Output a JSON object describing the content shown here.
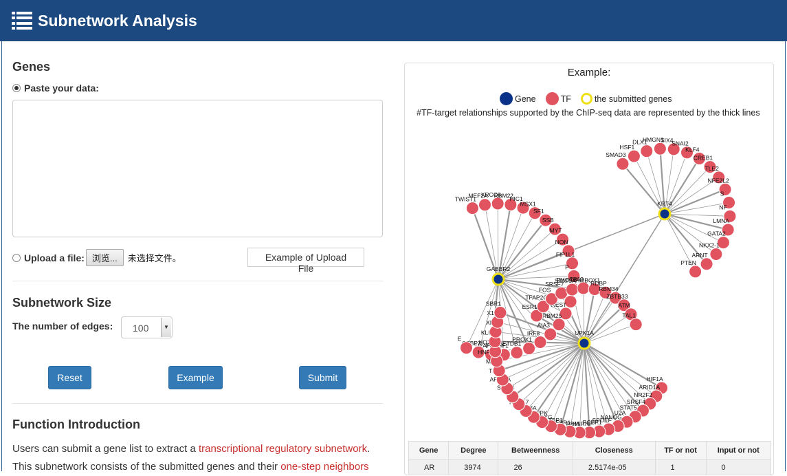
{
  "header": {
    "title": "Subnetwork Analysis"
  },
  "genes": {
    "title": "Genes",
    "paste_label": "Paste your data:",
    "upload_label": "Upload a file:",
    "browse_button": "浏览...",
    "no_file": "未选择文件。",
    "example_upload_button": "Example of Upload File"
  },
  "subnetwork_size": {
    "title": "Subnetwork Size",
    "edges_label": "The number of edges:",
    "edges_value": "100"
  },
  "buttons": {
    "reset": "Reset",
    "example": "Example",
    "submit": "Submit"
  },
  "function_intro": {
    "title": "Function Introduction",
    "line1_prefix": "Users can submit a gene list to extract a ",
    "line1_link": "transcriptional regulatory subnetwork",
    "line1_suffix": ".",
    "line2_prefix": "This subnetwork consists of the submitted genes and their ",
    "line2_link": "one-step neighbors"
  },
  "example_panel": {
    "title": "Example:",
    "legend": {
      "gene": "Gene",
      "tf": "TF",
      "submitted": "the submitted genes"
    },
    "note": "#TF-target relationships supported by the ChIP-seq data are represented by the thick lines",
    "colors": {
      "gene": "#0a3289",
      "tf": "#e0535f",
      "submitted_ring": "#f0e018"
    },
    "hubs": [
      "KRT4",
      "GABBR2",
      "UPK1A"
    ],
    "network_labels": {
      "krt4": [
        "SMAD3",
        "HSF1",
        "DLX1",
        "HMGN1",
        "SIX4",
        "SNAI2",
        "KLF4",
        "CREB1",
        "TLE2",
        "NFE2L2",
        "S",
        "NF",
        "LMNA",
        "GATA2",
        "NKX2-1",
        "ARNT",
        "PTEN"
      ],
      "gabbr2": [
        "TWIST1",
        "MEF2A",
        "XRCC6",
        "RBM22",
        "HIC1",
        "MSX1",
        "SF1",
        "SSB",
        "MYT",
        "NON",
        "FIP1L1",
        "P",
        "RHOX2",
        "S 17",
        "REST",
        "RBM25",
        "AIA3",
        "IRF8",
        "PROX1",
        "SETDB1",
        "POU5F1",
        "U2AF2",
        "CEBPZ",
        "E"
      ],
      "upk1a": [
        "ESR1",
        "TFAP2C",
        "FOS",
        "SRSF7",
        "STAT5A",
        "TP63",
        "HMBOX1",
        "RDBP",
        "RBM34",
        "ZBTB33",
        "ATM",
        "TAL1",
        "HIF1A",
        "ARID1A",
        "NR2F2",
        "SRSF4",
        "STAT5",
        "U2A",
        "NANOG",
        "SPDEF",
        "PCBP1",
        "HNRNP",
        "RBM",
        "EBR1",
        "CTBP1",
        "FOXG",
        "HNRNPK",
        "LIN28A",
        "RBM17",
        "AR",
        "SALL4",
        "ARID3A",
        "TP53",
        "MYB",
        "HNRNPL",
        "HOXB7",
        "KLF2",
        "XI",
        "X1",
        "SBR1"
      ]
    }
  },
  "table": {
    "headers": [
      "Gene",
      "Degree",
      "Betweenness",
      "Closeness",
      "TF or not",
      "Input or not"
    ],
    "rows": [
      [
        "AR",
        "3974",
        "26",
        "2.5174e-05",
        "1",
        "0"
      ]
    ]
  }
}
